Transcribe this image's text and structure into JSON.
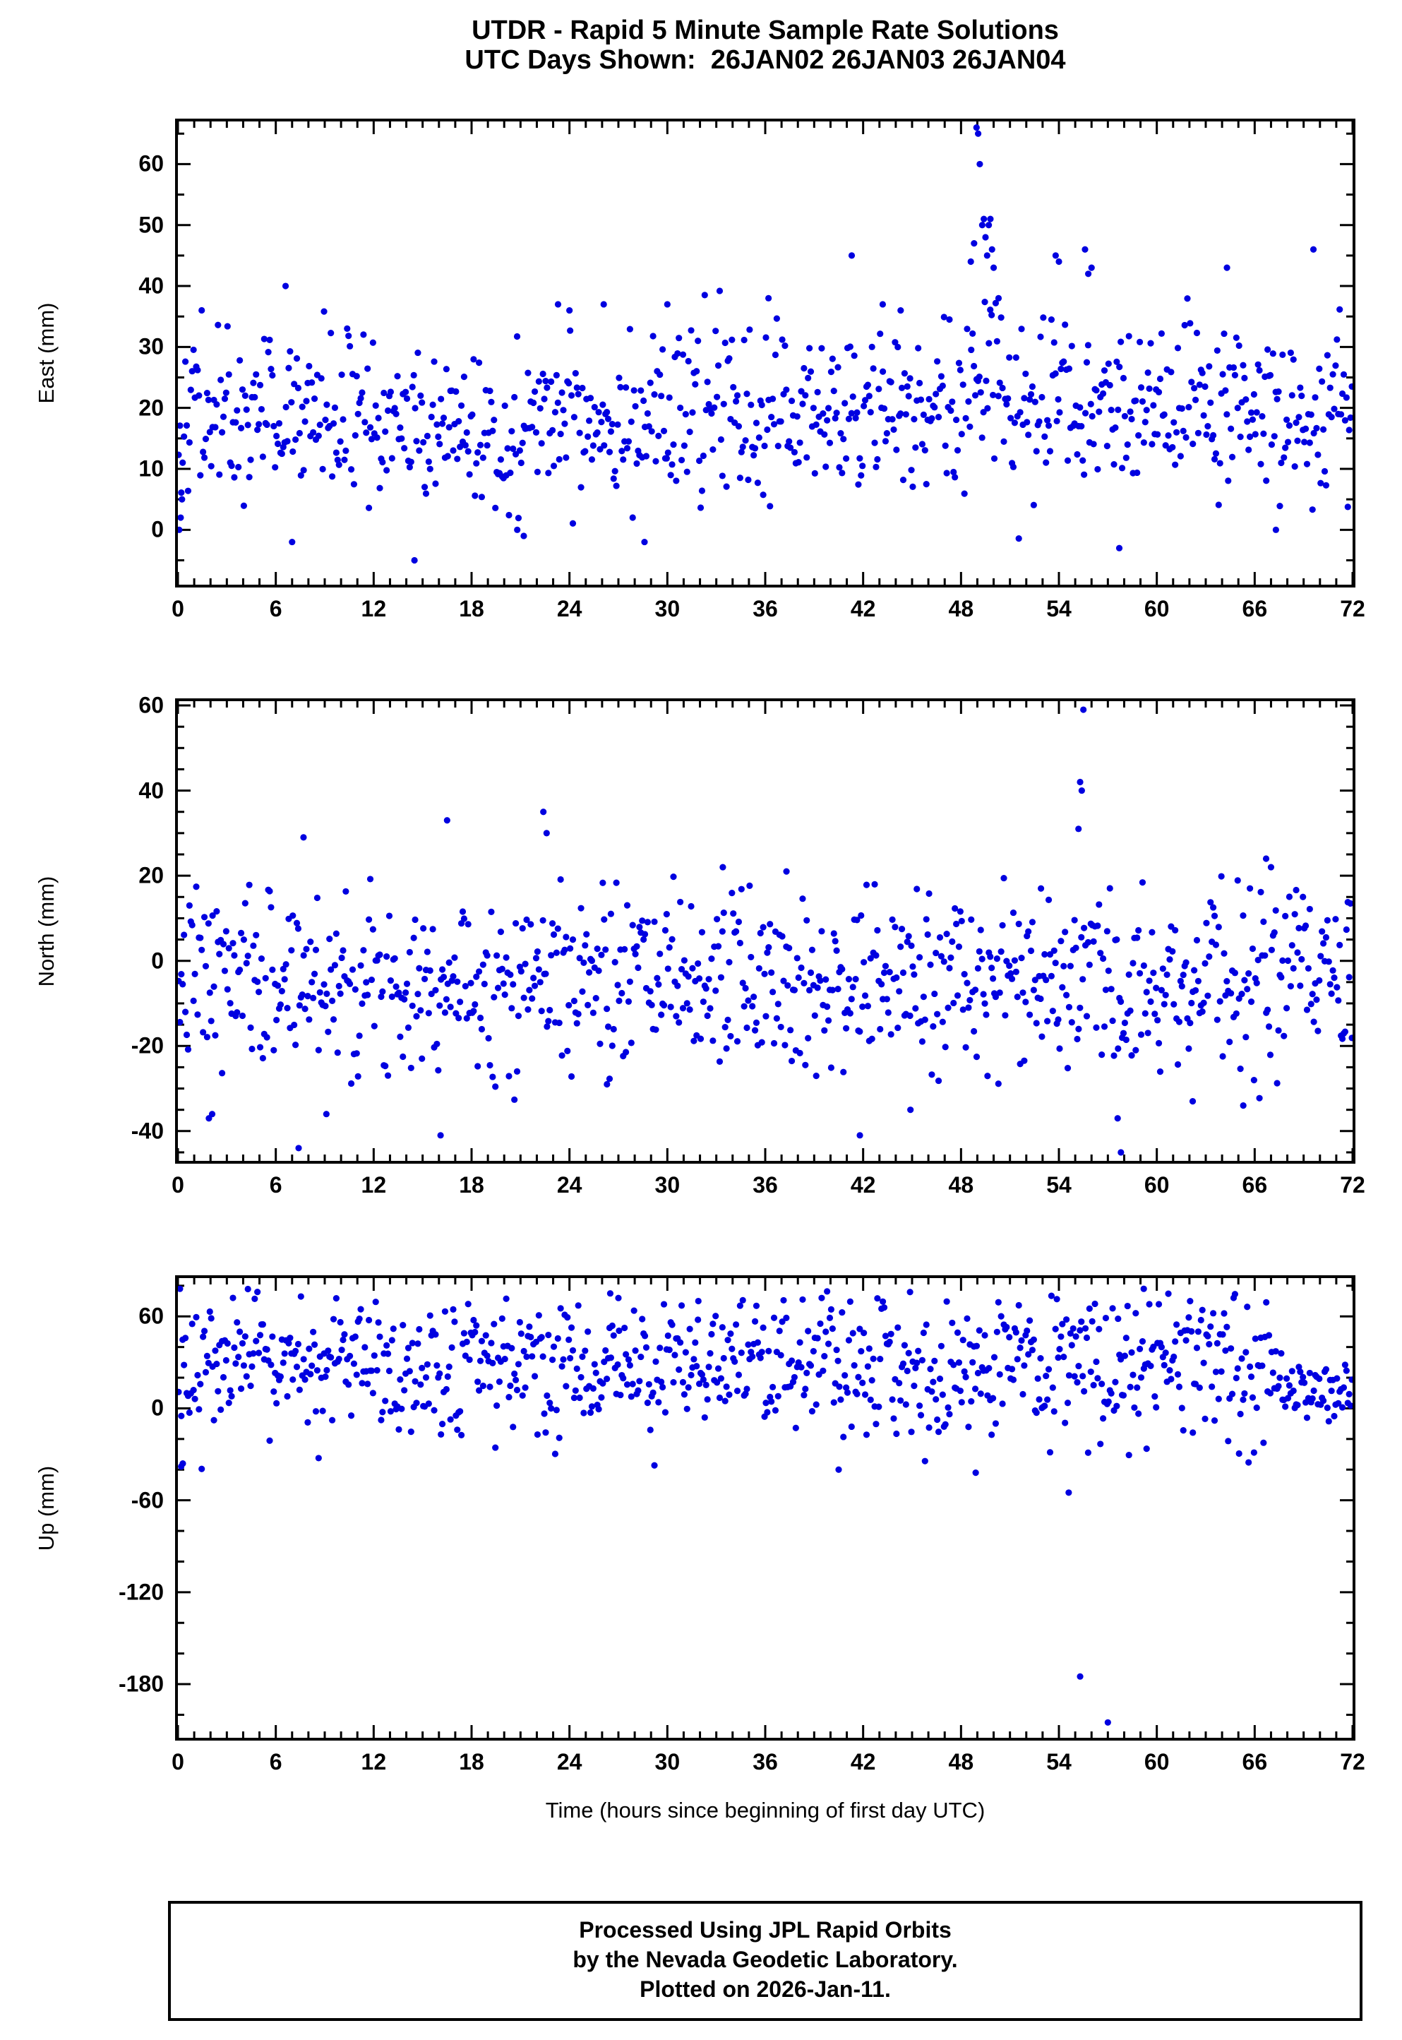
{
  "title": {
    "line1": "UTDR - Rapid 5 Minute Sample Rate Solutions",
    "line2": "UTC Days Shown:  26JAN02 26JAN03 26JAN04"
  },
  "footer": {
    "line1": "Processed Using JPL Rapid Orbits",
    "line2": "by the Nevada Geodetic Laboratory.",
    "line3": "Plotted on 2026-Jan-11."
  },
  "chart_data": {
    "type": "scatter",
    "marker": {
      "shape": "circle",
      "color": "#0000e0",
      "radius_px": 4.6
    },
    "x": {
      "label": "Time (hours since beginning of first day UTC)",
      "lim": [
        0,
        72
      ],
      "major_ticks": [
        0,
        6,
        12,
        18,
        24,
        30,
        36,
        42,
        48,
        54,
        60,
        66,
        72
      ],
      "minor_step": 1,
      "sample_interval_hours": 0.0833
    },
    "panels": [
      {
        "name": "east",
        "ylabel": "East (mm)",
        "ylim": [
          -9,
          67
        ],
        "major_ticks": [
          0,
          10,
          20,
          30,
          40,
          50,
          60
        ],
        "minor_step": 5,
        "n_points": 864,
        "baseline_mean": 19,
        "baseline_sd": 7,
        "clamp": [
          -2,
          40
        ],
        "seed": 42,
        "segments": [
          {
            "x0": 12,
            "x1": 22,
            "mean": 16,
            "sd": 6
          },
          {
            "x0": 48.3,
            "x1": 50.6,
            "mean": 30,
            "sd": 9
          }
        ],
        "outliers": [
          [
            0.08,
            0
          ],
          [
            0.17,
            2
          ],
          [
            0.25,
            5
          ],
          [
            6.6,
            40
          ],
          [
            7.0,
            -2
          ],
          [
            14.5,
            -5
          ],
          [
            20.8,
            0
          ],
          [
            21.2,
            -1
          ],
          [
            23.3,
            37
          ],
          [
            24.0,
            36
          ],
          [
            26.1,
            37
          ],
          [
            28.6,
            -2
          ],
          [
            30.0,
            37
          ],
          [
            36.2,
            38
          ],
          [
            41.3,
            45
          ],
          [
            43.2,
            37
          ],
          [
            44.3,
            36
          ],
          [
            48.6,
            44
          ],
          [
            48.8,
            47
          ],
          [
            48.95,
            66
          ],
          [
            49.05,
            65
          ],
          [
            49.15,
            60
          ],
          [
            49.3,
            50
          ],
          [
            49.4,
            51
          ],
          [
            49.5,
            48
          ],
          [
            49.6,
            45
          ],
          [
            49.7,
            50
          ],
          [
            49.8,
            51
          ],
          [
            49.9,
            46
          ],
          [
            50.0,
            43
          ],
          [
            50.3,
            38
          ],
          [
            53.8,
            45
          ],
          [
            54.0,
            44
          ],
          [
            55.6,
            46
          ],
          [
            55.8,
            42
          ],
          [
            56.0,
            43
          ],
          [
            57.7,
            -3
          ],
          [
            64.3,
            43
          ],
          [
            67.3,
            0
          ],
          [
            69.6,
            46
          ]
        ]
      },
      {
        "name": "north",
        "ylabel": "North (mm)",
        "ylim": [
          -47,
          61
        ],
        "major_ticks": [
          -40,
          -20,
          0,
          20,
          40,
          60
        ],
        "minor_step": 5,
        "n_points": 864,
        "baseline_mean": -4,
        "baseline_sd": 11,
        "clamp": [
          -33,
          20
        ],
        "seed": 7,
        "segments": [],
        "outliers": [
          [
            1.9,
            -37
          ],
          [
            2.1,
            -36
          ],
          [
            7.4,
            -44
          ],
          [
            7.7,
            29
          ],
          [
            9.1,
            -36
          ],
          [
            16.1,
            -41
          ],
          [
            16.5,
            33
          ],
          [
            22.4,
            35
          ],
          [
            22.6,
            30
          ],
          [
            26.3,
            -29
          ],
          [
            33.4,
            22
          ],
          [
            37.3,
            21
          ],
          [
            41.8,
            -41
          ],
          [
            44.9,
            -35
          ],
          [
            52.9,
            17
          ],
          [
            55.2,
            31
          ],
          [
            55.3,
            42
          ],
          [
            55.4,
            40
          ],
          [
            55.5,
            59
          ],
          [
            57.6,
            -37
          ],
          [
            57.8,
            -45
          ],
          [
            62.2,
            -33
          ],
          [
            65.3,
            -34
          ],
          [
            66.7,
            24
          ],
          [
            67.0,
            22
          ]
        ]
      },
      {
        "name": "up",
        "ylabel": "Up (mm)",
        "ylim": [
          -215,
          85
        ],
        "major_ticks": [
          -180,
          -120,
          -60,
          0,
          60
        ],
        "minor_step": 20,
        "n_points": 864,
        "baseline_mean": 27,
        "baseline_sd": 24,
        "clamp": [
          -45,
          78
        ],
        "seed": 13,
        "segments": [
          {
            "x0": 68,
            "x1": 72,
            "mean": 10,
            "sd": 10
          }
        ],
        "outliers": [
          [
            0.2,
            -38
          ],
          [
            0.3,
            -36
          ],
          [
            26.5,
            75
          ],
          [
            27.0,
            72
          ],
          [
            31.9,
            70
          ],
          [
            40.5,
            -40
          ],
          [
            48.9,
            -42
          ],
          [
            54.6,
            -55
          ],
          [
            55.3,
            -175
          ],
          [
            57.0,
            -205
          ],
          [
            59.2,
            78
          ]
        ]
      }
    ]
  }
}
